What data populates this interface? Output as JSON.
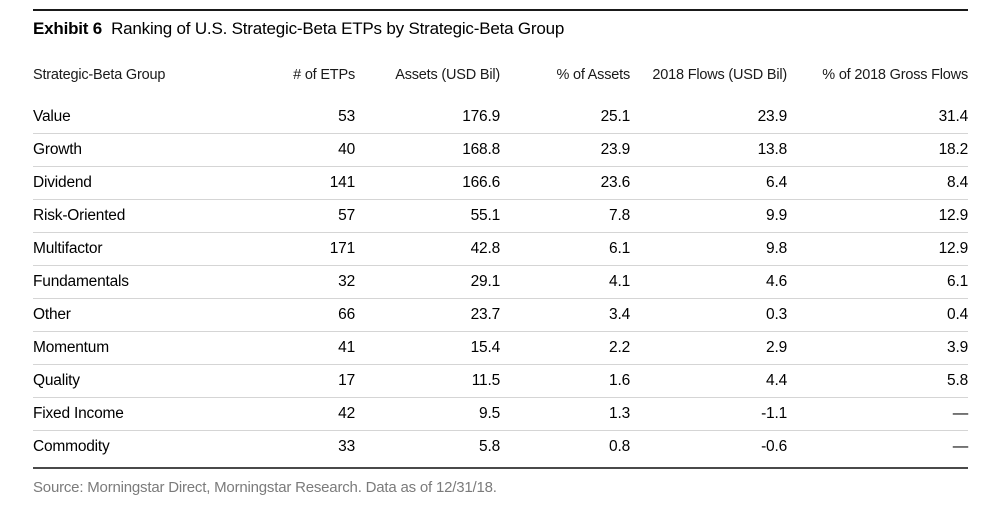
{
  "exhibit": {
    "label": "Exhibit 6",
    "title": "Ranking of U.S. Strategic-Beta ETPs by Strategic-Beta Group"
  },
  "table": {
    "columns": [
      "Strategic-Beta Group",
      "# of ETPs",
      "Assets (USD Bil)",
      "% of Assets",
      "2018 Flows (USD Bil)",
      "% of 2018 Gross Flows"
    ],
    "rows": [
      [
        "Value",
        "53",
        "176.9",
        "25.1",
        "23.9",
        "31.4"
      ],
      [
        "Growth",
        "40",
        "168.8",
        "23.9",
        "13.8",
        "18.2"
      ],
      [
        "Dividend",
        "141",
        "166.6",
        "23.6",
        "6.4",
        "8.4"
      ],
      [
        "Risk-Oriented",
        "57",
        "55.1",
        "7.8",
        "9.9",
        "12.9"
      ],
      [
        "Multifactor",
        "171",
        "42.8",
        "6.1",
        "9.8",
        "12.9"
      ],
      [
        "Fundamentals",
        "32",
        "29.1",
        "4.1",
        "4.6",
        "6.1"
      ],
      [
        "Other",
        "66",
        "23.7",
        "3.4",
        "0.3",
        "0.4"
      ],
      [
        "Momentum",
        "41",
        "15.4",
        "2.2",
        "2.9",
        "3.9"
      ],
      [
        "Quality",
        "17",
        "11.5",
        "1.6",
        "4.4",
        "5.8"
      ],
      [
        "Fixed Income",
        "42",
        "9.5",
        "1.3",
        "-1.1",
        "—"
      ],
      [
        "Commodity",
        "33",
        "5.8",
        "0.8",
        "-0.6",
        "—"
      ]
    ]
  },
  "chart_data": {
    "type": "table",
    "title": "Exhibit 6 Ranking of U.S. Strategic-Beta ETPs by Strategic-Beta Group",
    "columns": [
      "Strategic-Beta Group",
      "# of ETPs",
      "Assets (USD Bil)",
      "% of Assets",
      "2018 Flows (USD Bil)",
      "% of 2018 Gross Flows"
    ],
    "rows": [
      [
        "Value",
        53,
        176.9,
        25.1,
        23.9,
        31.4
      ],
      [
        "Growth",
        40,
        168.8,
        23.9,
        13.8,
        18.2
      ],
      [
        "Dividend",
        141,
        166.6,
        23.6,
        6.4,
        8.4
      ],
      [
        "Risk-Oriented",
        57,
        55.1,
        7.8,
        9.9,
        12.9
      ],
      [
        "Multifactor",
        171,
        42.8,
        6.1,
        9.8,
        12.9
      ],
      [
        "Fundamentals",
        32,
        29.1,
        4.1,
        4.6,
        6.1
      ],
      [
        "Other",
        66,
        23.7,
        3.4,
        0.3,
        0.4
      ],
      [
        "Momentum",
        41,
        15.4,
        2.2,
        2.9,
        3.9
      ],
      [
        "Quality",
        17,
        11.5,
        1.6,
        4.4,
        5.8
      ],
      [
        "Fixed Income",
        42,
        9.5,
        1.3,
        -1.1,
        null
      ],
      [
        "Commodity",
        33,
        5.8,
        0.8,
        -0.6,
        null
      ]
    ]
  },
  "source": "Source: Morningstar Direct, Morningstar Research. Data as of 12/31/18.",
  "colors": {
    "background": "#ffffff",
    "text": "#000000",
    "header_text": "#1a1a1a",
    "row_divider": "#d5d5d5",
    "top_rule": "#1a1a1a",
    "bottom_rule": "#4a4a4a",
    "source_text": "#7b7b7b"
  }
}
